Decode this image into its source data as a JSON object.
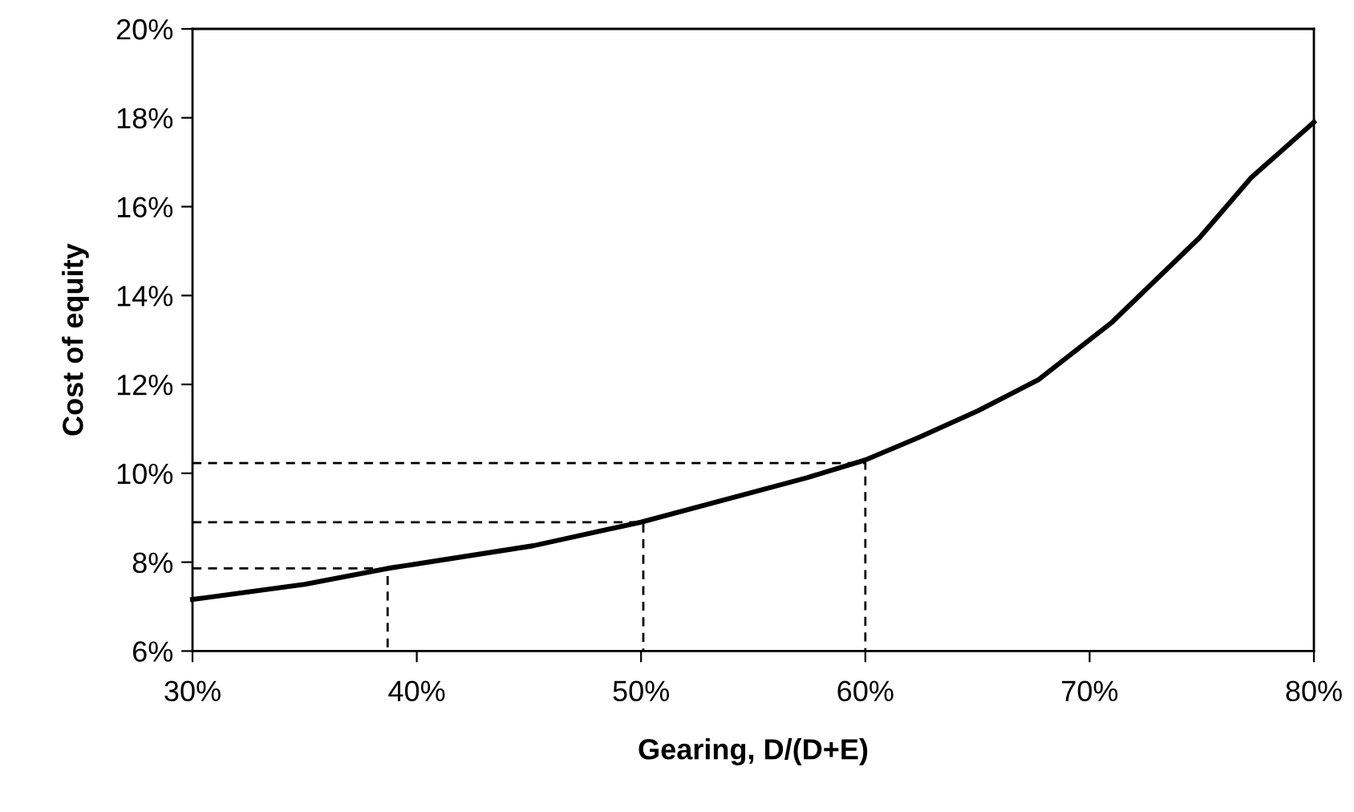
{
  "chart_data": {
    "type": "line",
    "xlabel": "Gearing, D/(D+E)",
    "ylabel": "Cost of equity",
    "xlim": [
      30,
      80
    ],
    "ylim": [
      6,
      20
    ],
    "xticks": [
      {
        "value": 30,
        "label": "30%"
      },
      {
        "value": 40,
        "label": "40%"
      },
      {
        "value": 50,
        "label": "50%"
      },
      {
        "value": 60,
        "label": "60%"
      },
      {
        "value": 70,
        "label": "70%"
      },
      {
        "value": 80,
        "label": "80%"
      }
    ],
    "yticks": [
      {
        "value": 6,
        "label": "6%"
      },
      {
        "value": 8,
        "label": "8%"
      },
      {
        "value": 10,
        "label": "10%"
      },
      {
        "value": 12,
        "label": "12%"
      },
      {
        "value": 14,
        "label": "14%"
      },
      {
        "value": 16,
        "label": "16%"
      },
      {
        "value": 18,
        "label": "18%"
      },
      {
        "value": 20,
        "label": "20%"
      }
    ],
    "grid": false,
    "series": [
      {
        "color": "#000000",
        "line_style": "solid",
        "x": [
          30,
          35,
          38.7,
          45.2,
          50,
          57.4,
          60,
          62.4,
          65,
          67.7,
          71,
          74.9,
          77.2,
          80
        ],
        "values": [
          7.16,
          7.5,
          7.86,
          8.37,
          8.9,
          9.9,
          10.3,
          10.81,
          11.4,
          12.1,
          13.4,
          15.3,
          16.65,
          17.9
        ]
      },
      {
        "color": "#000000",
        "line_style": "dashed",
        "x": [
          30,
          38.7,
          38.7
        ],
        "values": [
          7.86,
          7.86,
          6
        ]
      },
      {
        "color": "#000000",
        "line_style": "dashed",
        "x": [
          30,
          50.1,
          50.1
        ],
        "values": [
          8.9,
          8.9,
          6
        ]
      },
      {
        "color": "#000000",
        "line_style": "dashed",
        "x": [
          30,
          60,
          60
        ],
        "values": [
          10.23,
          10.23,
          6
        ]
      }
    ]
  }
}
